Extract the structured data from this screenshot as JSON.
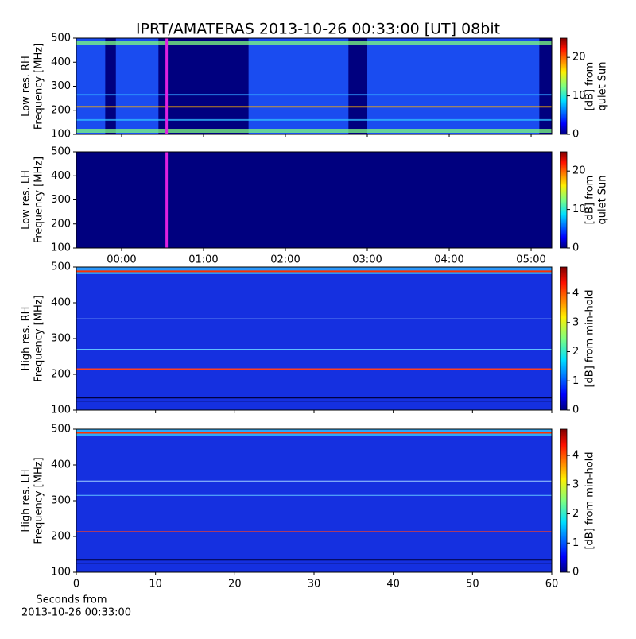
{
  "chart_data": [
    {
      "type": "heatmap",
      "title": "IPRT/AMATERAS 2013-10-26 00:33:00 [UT]   08bit",
      "ylabel": [
        "Low res. RH",
        "Frequency [MHz]"
      ],
      "ylim": [
        100,
        500
      ],
      "yticks": [
        100,
        200,
        300,
        400,
        500
      ],
      "xlim": [
        -0.553,
        5.252
      ],
      "colorbar_label": [
        "[dB] from",
        "quiet Sun"
      ],
      "clim": [
        0,
        25
      ],
      "cticks": [
        0,
        10,
        20
      ]
    },
    {
      "type": "heatmap",
      "ylabel": [
        "Low res. LH",
        "Frequency [MHz]"
      ],
      "ylim": [
        100,
        500
      ],
      "yticks": [
        100,
        200,
        300,
        400,
        500
      ],
      "xlim": [
        -0.553,
        5.252
      ],
      "xticks": [
        {
          "value": 0,
          "label": "00:00"
        },
        {
          "value": 1,
          "label": "01:00"
        },
        {
          "value": 2,
          "label": "02:00"
        },
        {
          "value": 3,
          "label": "03:00"
        },
        {
          "value": 4,
          "label": "04:00"
        },
        {
          "value": 5,
          "label": "05:00"
        }
      ],
      "colorbar_label": [
        "[dB] from",
        "quiet Sun"
      ],
      "clim": [
        0,
        25
      ],
      "cticks": [
        0,
        10,
        20
      ]
    },
    {
      "type": "heatmap",
      "ylabel": [
        "High res. RH",
        "Frequency [MHz]"
      ],
      "ylim": [
        100,
        500
      ],
      "yticks": [
        100,
        200,
        300,
        400,
        500
      ],
      "xlim": [
        0,
        60
      ],
      "colorbar_label": [
        "[dB] from min-hold"
      ],
      "clim": [
        0,
        4.9
      ],
      "cticks": [
        0,
        1,
        2,
        3,
        4
      ]
    },
    {
      "type": "heatmap",
      "ylabel": [
        "High res. LH",
        "Frequency [MHz]"
      ],
      "ylim": [
        100,
        500
      ],
      "yticks": [
        100,
        200,
        300,
        400,
        500
      ],
      "xlim": [
        0,
        60
      ],
      "xticks": [
        0,
        10,
        20,
        30,
        40,
        50,
        60
      ],
      "xlabel": [
        "Seconds from",
        "2013-10-26 00:33:00"
      ],
      "colorbar_label": [
        "[dB] from min-hold"
      ],
      "clim": [
        0,
        4.9
      ],
      "cticks": [
        0,
        1,
        2,
        3,
        4
      ]
    }
  ]
}
